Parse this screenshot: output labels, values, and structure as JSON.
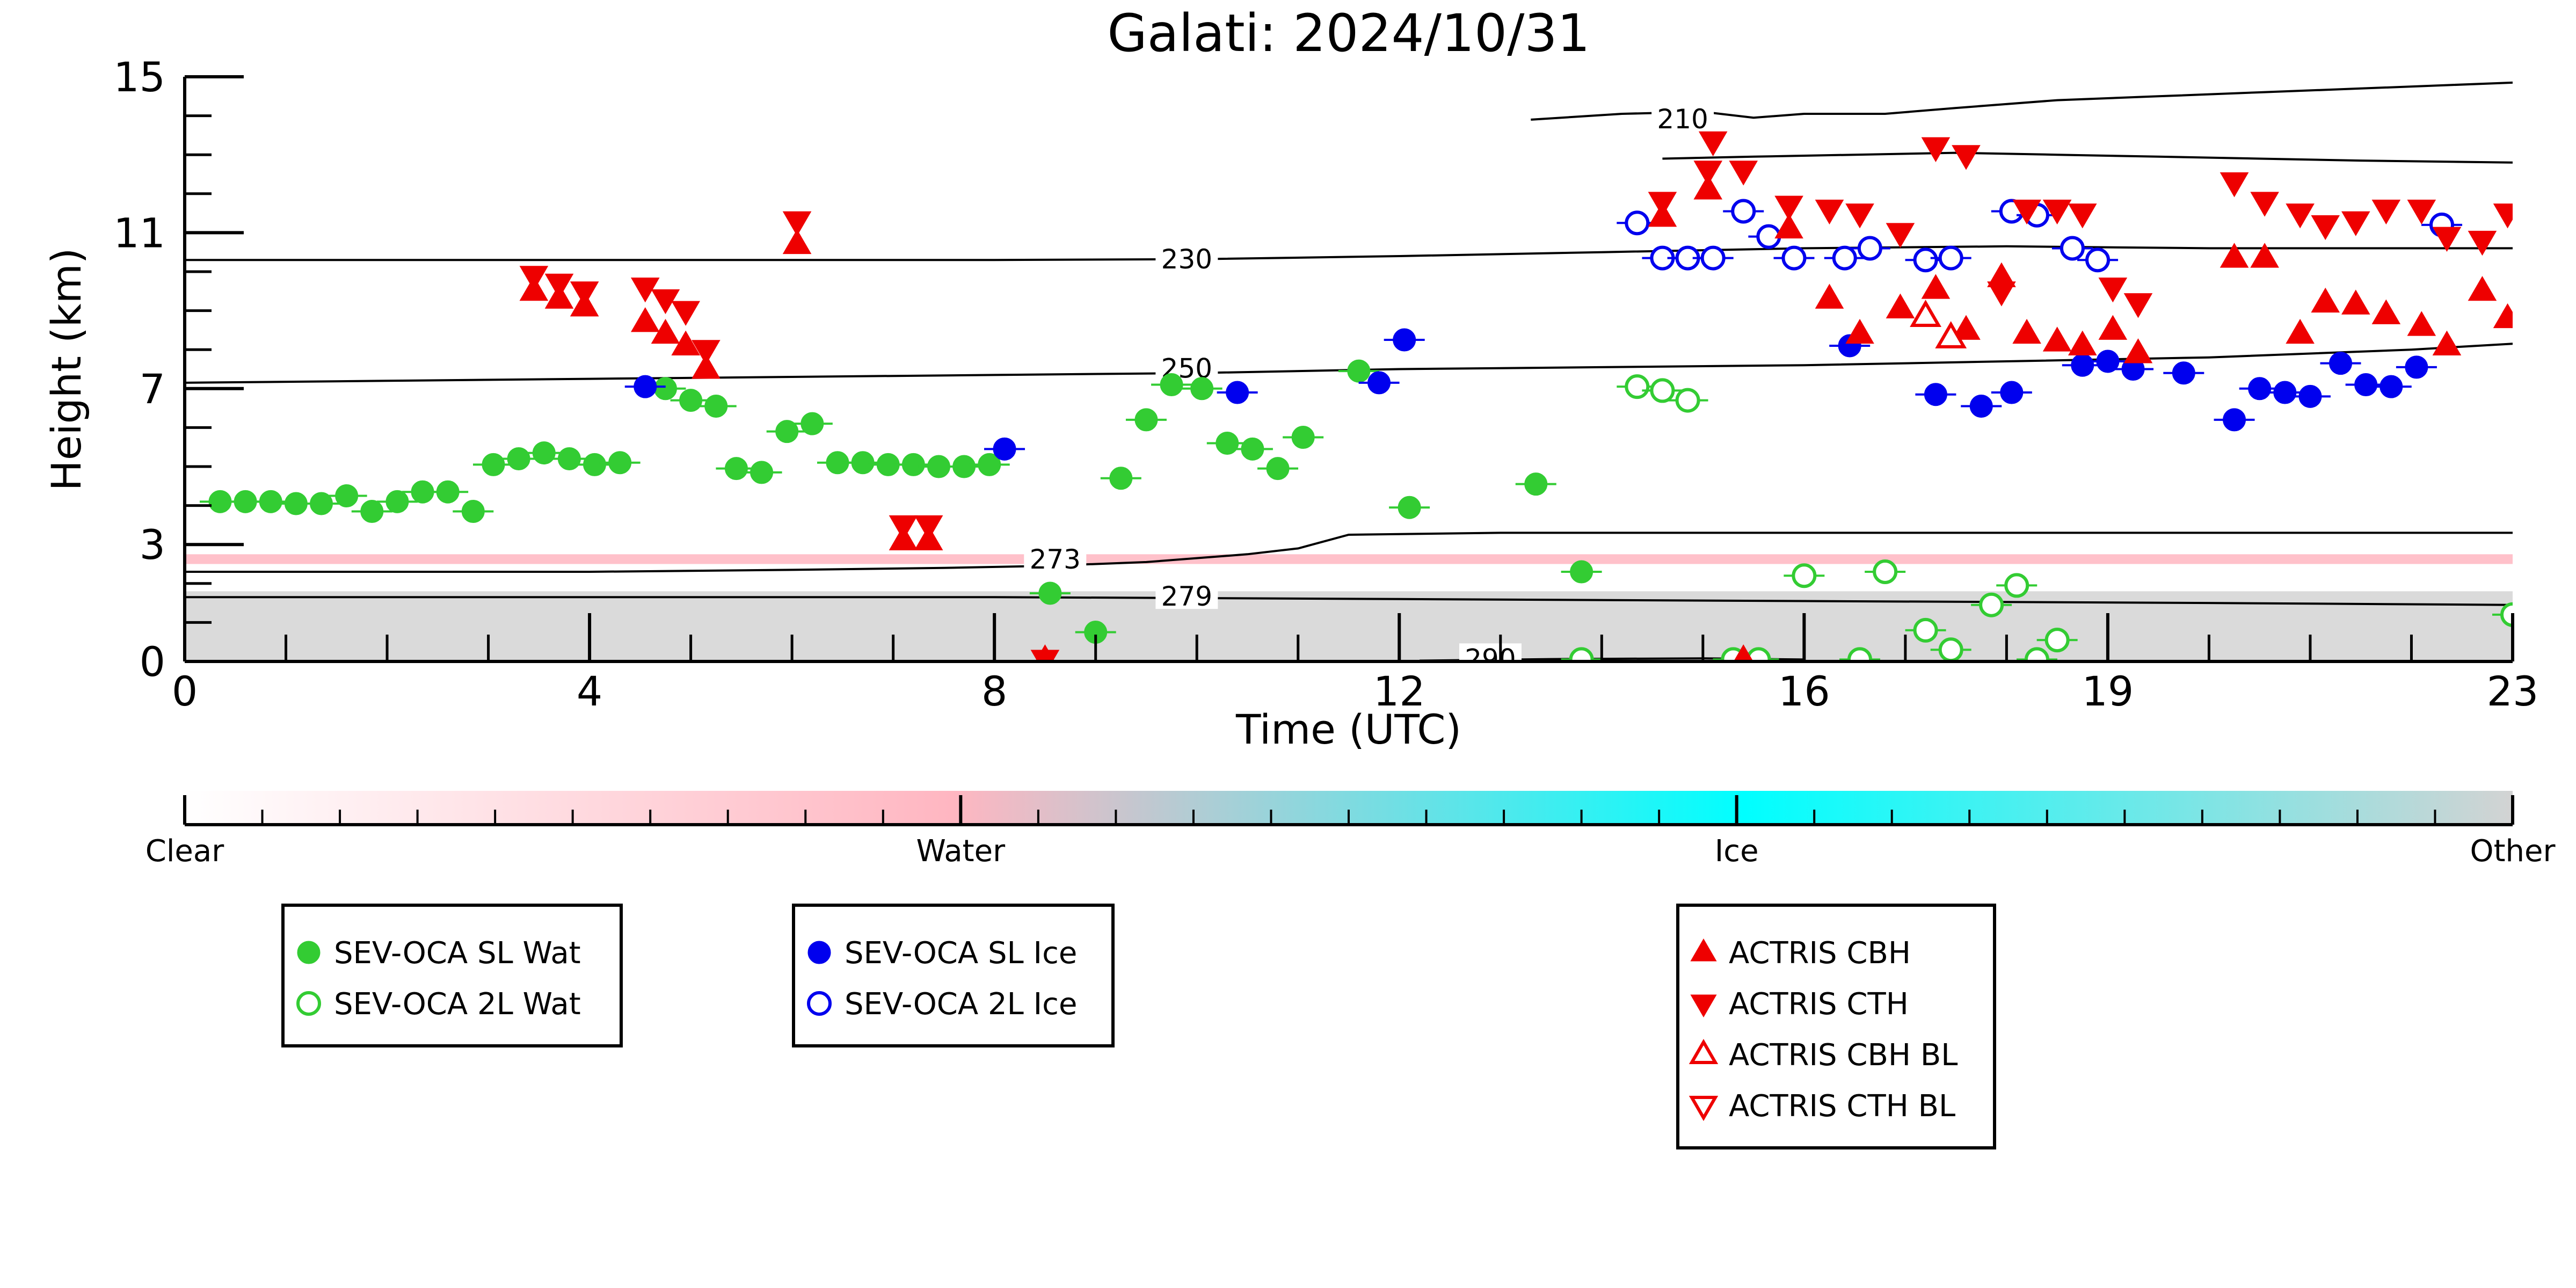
{
  "chart_data": {
    "type": "scatter",
    "title": "Galati: 2024/10/31",
    "xlabel": "Time (UTC)",
    "ylabel": "Height (km)",
    "xlim": [
      0,
      23
    ],
    "ylim": [
      0,
      15
    ],
    "xticks": [
      "0",
      "4",
      "8",
      "12",
      "16",
      "19",
      "23"
    ],
    "xtick_values": [
      0,
      4,
      8,
      12,
      16,
      19,
      23
    ],
    "yticks": [
      "0",
      "3",
      "7",
      "11",
      "15"
    ],
    "ytick_values": [
      0,
      3,
      7,
      11,
      15
    ],
    "colorbar": {
      "labels": [
        "Clear",
        "Water",
        "Ice",
        "Other"
      ],
      "colors": [
        "#ffffff",
        "#ffb6c1",
        "#00ffff",
        "#d3d3d3"
      ]
    },
    "background_bands": [
      {
        "class": "Other",
        "color": "#d3d3d3",
        "y_from": 0.0,
        "y_to": 1.8
      },
      {
        "class": "Water",
        "color": "#ffb6c1",
        "y_from": 2.5,
        "y_to": 2.75
      }
    ],
    "contours": [
      {
        "label": "210",
        "label_x": 14.8,
        "label_y": 13.9,
        "points": [
          [
            13.3,
            13.9
          ],
          [
            14.2,
            14.05
          ],
          [
            15.0,
            14.1
          ],
          [
            15.5,
            13.95
          ],
          [
            16.0,
            14.05
          ],
          [
            16.8,
            14.05
          ],
          [
            17.5,
            14.2
          ],
          [
            18.5,
            14.4
          ],
          [
            19.5,
            14.5
          ],
          [
            20.5,
            14.6
          ],
          [
            21.5,
            14.7
          ],
          [
            23,
            14.85
          ]
        ]
      },
      {
        "label": "",
        "label_x": 0,
        "label_y": 0,
        "points": [
          [
            14.6,
            12.9
          ],
          [
            15.5,
            12.95
          ],
          [
            16.5,
            13.0
          ],
          [
            17.5,
            13.05
          ],
          [
            18.5,
            13.0
          ],
          [
            19.5,
            12.95
          ],
          [
            20.5,
            12.9
          ],
          [
            21.5,
            12.85
          ],
          [
            23,
            12.8
          ]
        ]
      },
      {
        "label": "230",
        "label_x": 9.9,
        "label_y": 10.3,
        "points": [
          [
            0,
            10.3
          ],
          [
            2,
            10.3
          ],
          [
            4,
            10.3
          ],
          [
            6,
            10.3
          ],
          [
            8,
            10.3
          ],
          [
            10,
            10.32
          ],
          [
            12,
            10.4
          ],
          [
            14,
            10.5
          ],
          [
            16,
            10.6
          ],
          [
            18,
            10.65
          ],
          [
            20,
            10.6
          ],
          [
            22,
            10.6
          ],
          [
            23,
            10.6
          ]
        ]
      },
      {
        "label": "250",
        "label_x": 9.9,
        "label_y": 7.5,
        "points": [
          [
            0,
            7.15
          ],
          [
            2,
            7.2
          ],
          [
            4,
            7.25
          ],
          [
            6,
            7.3
          ],
          [
            8,
            7.35
          ],
          [
            10,
            7.4
          ],
          [
            12,
            7.5
          ],
          [
            14,
            7.55
          ],
          [
            16,
            7.6
          ],
          [
            18,
            7.7
          ],
          [
            20,
            7.8
          ],
          [
            22,
            8.0
          ],
          [
            23,
            8.15
          ]
        ]
      },
      {
        "label": "273",
        "label_x": 8.6,
        "label_y": 2.6,
        "points": [
          [
            0,
            2.3
          ],
          [
            2,
            2.3
          ],
          [
            4,
            2.3
          ],
          [
            6,
            2.35
          ],
          [
            7.5,
            2.4
          ],
          [
            8.5,
            2.45
          ],
          [
            9.5,
            2.55
          ],
          [
            10.5,
            2.75
          ],
          [
            11,
            2.9
          ],
          [
            11.5,
            3.25
          ],
          [
            13,
            3.3
          ],
          [
            15,
            3.3
          ],
          [
            17,
            3.3
          ],
          [
            19,
            3.3
          ],
          [
            21,
            3.3
          ],
          [
            23,
            3.3
          ]
        ]
      },
      {
        "label": "279",
        "label_x": 9.9,
        "label_y": 1.65,
        "points": [
          [
            0,
            1.65
          ],
          [
            4,
            1.65
          ],
          [
            8,
            1.65
          ],
          [
            12,
            1.6
          ],
          [
            16,
            1.55
          ],
          [
            20,
            1.5
          ],
          [
            23,
            1.45
          ]
        ]
      },
      {
        "label": "290",
        "label_x": 12.9,
        "label_y": 0.05,
        "points": [
          [
            12.2,
            0.02
          ],
          [
            13.5,
            0.06
          ],
          [
            15.0,
            0.08
          ],
          [
            16.0,
            0.05
          ]
        ]
      }
    ],
    "series": [
      {
        "name": "SEV-OCA SL Wat",
        "marker": "circle",
        "fill": "#33cc33",
        "stroke": "#33cc33",
        "filled": true,
        "points": [
          [
            0.35,
            4.1
          ],
          [
            0.6,
            4.1
          ],
          [
            0.85,
            4.1
          ],
          [
            1.1,
            4.05
          ],
          [
            1.35,
            4.05
          ],
          [
            1.6,
            4.25
          ],
          [
            1.85,
            3.85
          ],
          [
            2.1,
            4.1
          ],
          [
            2.35,
            4.35
          ],
          [
            2.6,
            4.35
          ],
          [
            2.85,
            3.85
          ],
          [
            3.05,
            5.05
          ],
          [
            3.3,
            5.2
          ],
          [
            3.55,
            5.35
          ],
          [
            3.8,
            5.2
          ],
          [
            4.05,
            5.05
          ],
          [
            4.3,
            5.1
          ],
          [
            4.75,
            7.0
          ],
          [
            5.0,
            6.7
          ],
          [
            5.25,
            6.55
          ],
          [
            5.45,
            4.95
          ],
          [
            5.7,
            4.85
          ],
          [
            5.95,
            5.9
          ],
          [
            6.2,
            6.1
          ],
          [
            6.45,
            5.1
          ],
          [
            6.7,
            5.1
          ],
          [
            6.95,
            5.05
          ],
          [
            7.2,
            5.05
          ],
          [
            7.45,
            5.0
          ],
          [
            7.7,
            5.0
          ],
          [
            7.95,
            5.05
          ],
          [
            8.55,
            1.75
          ],
          [
            9.0,
            0.75
          ],
          [
            9.25,
            4.7
          ],
          [
            9.5,
            6.2
          ],
          [
            9.75,
            7.1
          ],
          [
            10.05,
            7.0
          ],
          [
            10.3,
            5.6
          ],
          [
            10.55,
            5.45
          ],
          [
            10.8,
            4.95
          ],
          [
            11.05,
            5.75
          ],
          [
            11.6,
            7.45
          ],
          [
            12.1,
            3.95
          ],
          [
            13.35,
            4.55
          ],
          [
            13.8,
            2.3
          ]
        ]
      },
      {
        "name": "SEV-OCA 2L Wat",
        "marker": "circle",
        "fill": "none",
        "stroke": "#33cc33",
        "filled": false,
        "points": [
          [
            13.8,
            0.05
          ],
          [
            14.35,
            7.05
          ],
          [
            14.6,
            6.95
          ],
          [
            14.85,
            6.7
          ],
          [
            15.3,
            0.05
          ],
          [
            15.55,
            0.05
          ],
          [
            16.0,
            2.2
          ],
          [
            16.55,
            0.05
          ],
          [
            16.8,
            2.3
          ],
          [
            17.2,
            0.8
          ],
          [
            17.45,
            0.3
          ],
          [
            17.85,
            1.45
          ],
          [
            18.1,
            1.95
          ],
          [
            18.3,
            0.05
          ],
          [
            18.5,
            0.55
          ],
          [
            23.0,
            1.2
          ]
        ]
      },
      {
        "name": "SEV-OCA SL Ice",
        "marker": "circle",
        "fill": "#0000ee",
        "stroke": "#0000ee",
        "filled": true,
        "points": [
          [
            4.55,
            7.05
          ],
          [
            8.1,
            5.45
          ],
          [
            10.4,
            6.9
          ],
          [
            11.8,
            7.15
          ],
          [
            12.05,
            8.25
          ],
          [
            16.45,
            8.1
          ],
          [
            17.3,
            6.85
          ],
          [
            17.75,
            6.55
          ],
          [
            18.05,
            6.9
          ],
          [
            18.75,
            7.6
          ],
          [
            19.0,
            7.7
          ],
          [
            19.25,
            7.5
          ],
          [
            19.75,
            7.4
          ],
          [
            20.25,
            6.2
          ],
          [
            20.5,
            7.0
          ],
          [
            20.75,
            6.9
          ],
          [
            21.0,
            6.8
          ],
          [
            21.3,
            7.65
          ],
          [
            21.55,
            7.1
          ],
          [
            21.8,
            7.05
          ],
          [
            22.05,
            7.55
          ]
        ]
      },
      {
        "name": "SEV-OCA 2L Ice",
        "marker": "circle",
        "fill": "none",
        "stroke": "#0000ee",
        "filled": false,
        "points": [
          [
            14.35,
            11.25
          ],
          [
            14.6,
            10.35
          ],
          [
            14.85,
            10.35
          ],
          [
            15.1,
            10.35
          ],
          [
            15.4,
            11.55
          ],
          [
            15.65,
            10.9
          ],
          [
            15.9,
            10.35
          ],
          [
            16.4,
            10.35
          ],
          [
            16.65,
            10.6
          ],
          [
            17.2,
            10.3
          ],
          [
            17.45,
            10.35
          ],
          [
            18.05,
            11.55
          ],
          [
            18.3,
            11.45
          ],
          [
            18.65,
            10.6
          ],
          [
            18.9,
            10.3
          ],
          [
            22.3,
            11.2
          ]
        ]
      },
      {
        "name": "ACTRIS CBH",
        "marker": "triangle-up",
        "fill": "#ee0000",
        "stroke": "#ee0000",
        "filled": true,
        "points": [
          [
            3.45,
            9.5
          ],
          [
            3.7,
            9.3
          ],
          [
            3.95,
            9.1
          ],
          [
            4.55,
            8.7
          ],
          [
            4.75,
            8.4
          ],
          [
            4.95,
            8.1
          ],
          [
            5.15,
            7.5
          ],
          [
            6.05,
            10.7
          ],
          [
            7.1,
            3.1
          ],
          [
            7.35,
            3.1
          ],
          [
            8.5,
            0.05
          ],
          [
            14.6,
            11.4
          ],
          [
            15.05,
            12.1
          ],
          [
            15.4,
            0.05
          ],
          [
            15.85,
            11.1
          ],
          [
            16.25,
            9.3
          ],
          [
            16.55,
            8.4
          ],
          [
            16.95,
            9.05
          ],
          [
            17.3,
            9.55
          ],
          [
            17.6,
            8.5
          ],
          [
            17.95,
            9.85
          ],
          [
            18.2,
            8.4
          ],
          [
            18.5,
            8.2
          ],
          [
            18.75,
            8.1
          ],
          [
            19.05,
            8.5
          ],
          [
            19.3,
            7.9
          ],
          [
            20.25,
            10.35
          ],
          [
            20.55,
            10.35
          ],
          [
            20.9,
            8.4
          ],
          [
            21.15,
            9.2
          ],
          [
            21.45,
            9.15
          ],
          [
            21.75,
            8.9
          ],
          [
            22.1,
            8.6
          ],
          [
            22.35,
            8.1
          ],
          [
            22.7,
            9.5
          ],
          [
            22.95,
            8.8
          ]
        ]
      },
      {
        "name": "ACTRIS CTH",
        "marker": "triangle-down",
        "fill": "#ee0000",
        "stroke": "#ee0000",
        "filled": true,
        "points": [
          [
            3.45,
            9.9
          ],
          [
            3.7,
            9.7
          ],
          [
            3.95,
            9.5
          ],
          [
            4.55,
            9.6
          ],
          [
            4.75,
            9.3
          ],
          [
            4.95,
            9.0
          ],
          [
            5.15,
            8.0
          ],
          [
            6.05,
            11.3
          ],
          [
            7.1,
            3.5
          ],
          [
            7.35,
            3.5
          ],
          [
            8.5,
            0.05
          ],
          [
            14.6,
            11.8
          ],
          [
            15.05,
            12.6
          ],
          [
            15.1,
            13.35
          ],
          [
            15.4,
            12.6
          ],
          [
            15.85,
            11.7
          ],
          [
            16.25,
            11.6
          ],
          [
            16.55,
            11.5
          ],
          [
            16.95,
            11.0
          ],
          [
            17.3,
            13.2
          ],
          [
            17.6,
            13.0
          ],
          [
            17.95,
            9.5
          ],
          [
            18.2,
            11.6
          ],
          [
            18.5,
            11.6
          ],
          [
            18.75,
            11.5
          ],
          [
            19.05,
            9.6
          ],
          [
            19.3,
            9.2
          ],
          [
            20.25,
            12.3
          ],
          [
            20.55,
            11.8
          ],
          [
            20.9,
            11.5
          ],
          [
            21.15,
            11.2
          ],
          [
            21.45,
            11.3
          ],
          [
            21.75,
            11.6
          ],
          [
            22.1,
            11.6
          ],
          [
            22.35,
            10.9
          ],
          [
            22.7,
            10.8
          ],
          [
            22.95,
            11.5
          ]
        ]
      },
      {
        "name": "ACTRIS CBH BL",
        "marker": "triangle-up",
        "fill": "none",
        "stroke": "#ee0000",
        "filled": false,
        "points": [
          [
            17.2,
            8.85
          ],
          [
            17.45,
            8.3
          ]
        ]
      },
      {
        "name": "ACTRIS CTH BL",
        "marker": "triangle-down",
        "fill": "none",
        "stroke": "#ee0000",
        "filled": false,
        "points": []
      }
    ],
    "legend_groups": [
      {
        "placement": "bottom-left",
        "entries": [
          "SEV-OCA SL Wat",
          "SEV-OCA 2L Wat"
        ]
      },
      {
        "placement": "bottom-center-left",
        "entries": [
          "SEV-OCA SL Ice",
          "SEV-OCA 2L Ice"
        ]
      },
      {
        "placement": "bottom-center-right",
        "entries": [
          "ACTRIS CBH",
          "ACTRIS CTH",
          "ACTRIS CBH BL",
          "ACTRIS CTH BL"
        ]
      }
    ]
  }
}
